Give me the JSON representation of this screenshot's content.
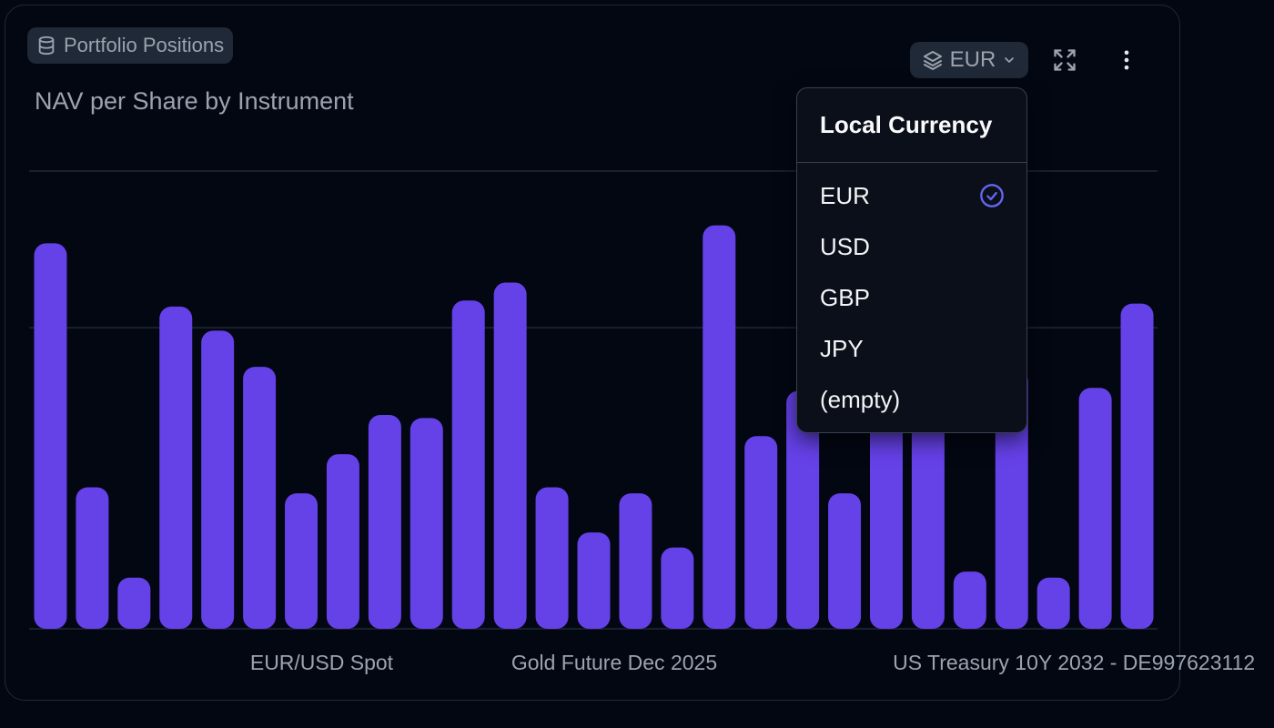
{
  "panel": {
    "source_label": "Portfolio Positions",
    "source_icon": "database-icon",
    "title": "NAV per Share by Instrument"
  },
  "toolbar": {
    "currency_value": "EUR",
    "currency_icon": "layers-icon",
    "expand_icon": "expand-icon",
    "more_icon": "more-vertical-icon"
  },
  "dropdown": {
    "header": "Local Currency",
    "options": [
      "EUR",
      "USD",
      "GBP",
      "JPY",
      "(empty)"
    ],
    "selected": "EUR",
    "check_color": "#6366f1"
  },
  "colors": {
    "bar": "#6541e8",
    "grid": "#1f2937",
    "background": "#030712"
  },
  "chart_data": {
    "type": "bar",
    "title": "NAV per Share by Instrument",
    "xlabel": "",
    "ylabel": "",
    "grid": true,
    "category_count": 27,
    "tick_labels": [
      {
        "index": 6.5,
        "label": "EUR/USD Spot"
      },
      {
        "index": 13.5,
        "label": "Gold Future Dec 2025"
      },
      {
        "index": 24.5,
        "label": "US Treasury 10Y 2032 - DE997623112"
      }
    ],
    "values": [
      1.28,
      0.47,
      0.17,
      1.07,
      0.99,
      0.87,
      0.45,
      0.58,
      0.71,
      0.7,
      1.09,
      1.15,
      0.47,
      0.32,
      0.45,
      0.27,
      1.34,
      0.64,
      0.79,
      0.45,
      0.82,
      0.91,
      0.19,
      0.86,
      0.17,
      0.8,
      1.08
    ],
    "ylim": [
      0,
      1.52
    ],
    "gridlines": [
      0,
      1.0,
      1.52
    ]
  }
}
